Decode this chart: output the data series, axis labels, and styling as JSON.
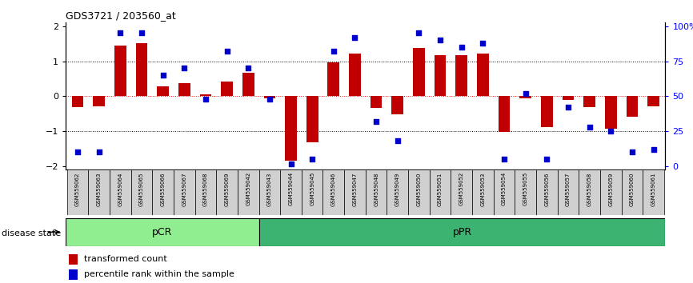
{
  "title": "GDS3721 / 203560_at",
  "samples": [
    "GSM559062",
    "GSM559063",
    "GSM559064",
    "GSM559065",
    "GSM559066",
    "GSM559067",
    "GSM559068",
    "GSM559069",
    "GSM559042",
    "GSM559043",
    "GSM559044",
    "GSM559045",
    "GSM559046",
    "GSM559047",
    "GSM559048",
    "GSM559049",
    "GSM559050",
    "GSM559051",
    "GSM559052",
    "GSM559053",
    "GSM559054",
    "GSM559055",
    "GSM559056",
    "GSM559057",
    "GSM559058",
    "GSM559059",
    "GSM559060",
    "GSM559061"
  ],
  "bar_values": [
    -0.32,
    -0.28,
    1.45,
    1.52,
    0.28,
    0.38,
    0.05,
    0.42,
    0.68,
    -0.05,
    -1.85,
    -1.32,
    0.97,
    1.22,
    -0.34,
    -0.52,
    1.38,
    1.18,
    1.18,
    1.22,
    -1.02,
    -0.05,
    -0.88,
    -0.1,
    -0.32,
    -0.92,
    -0.58,
    -0.28
  ],
  "dot_values": [
    10,
    10,
    95,
    95,
    65,
    70,
    48,
    82,
    70,
    48,
    2,
    5,
    82,
    92,
    32,
    18,
    95,
    90,
    85,
    88,
    5,
    52,
    5,
    42,
    28,
    25,
    10,
    12
  ],
  "pcr_count": 9,
  "bar_color": "#C00000",
  "dot_color": "#0000CD",
  "ylim": [
    -2.1,
    2.1
  ],
  "yticks": [
    -2,
    -1,
    0,
    1,
    2
  ],
  "right_yticks": [
    0,
    25,
    50,
    75,
    100
  ],
  "right_yticklabels": [
    "0",
    "25",
    "50",
    "75",
    "100%"
  ],
  "legend_bar_label": "transformed count",
  "legend_dot_label": "percentile rank within the sample",
  "disease_state_label": "disease state",
  "pcr_color": "#90EE90",
  "ppr_color": "#3CB371",
  "pcr_label": "pCR",
  "ppr_label": "pPR"
}
